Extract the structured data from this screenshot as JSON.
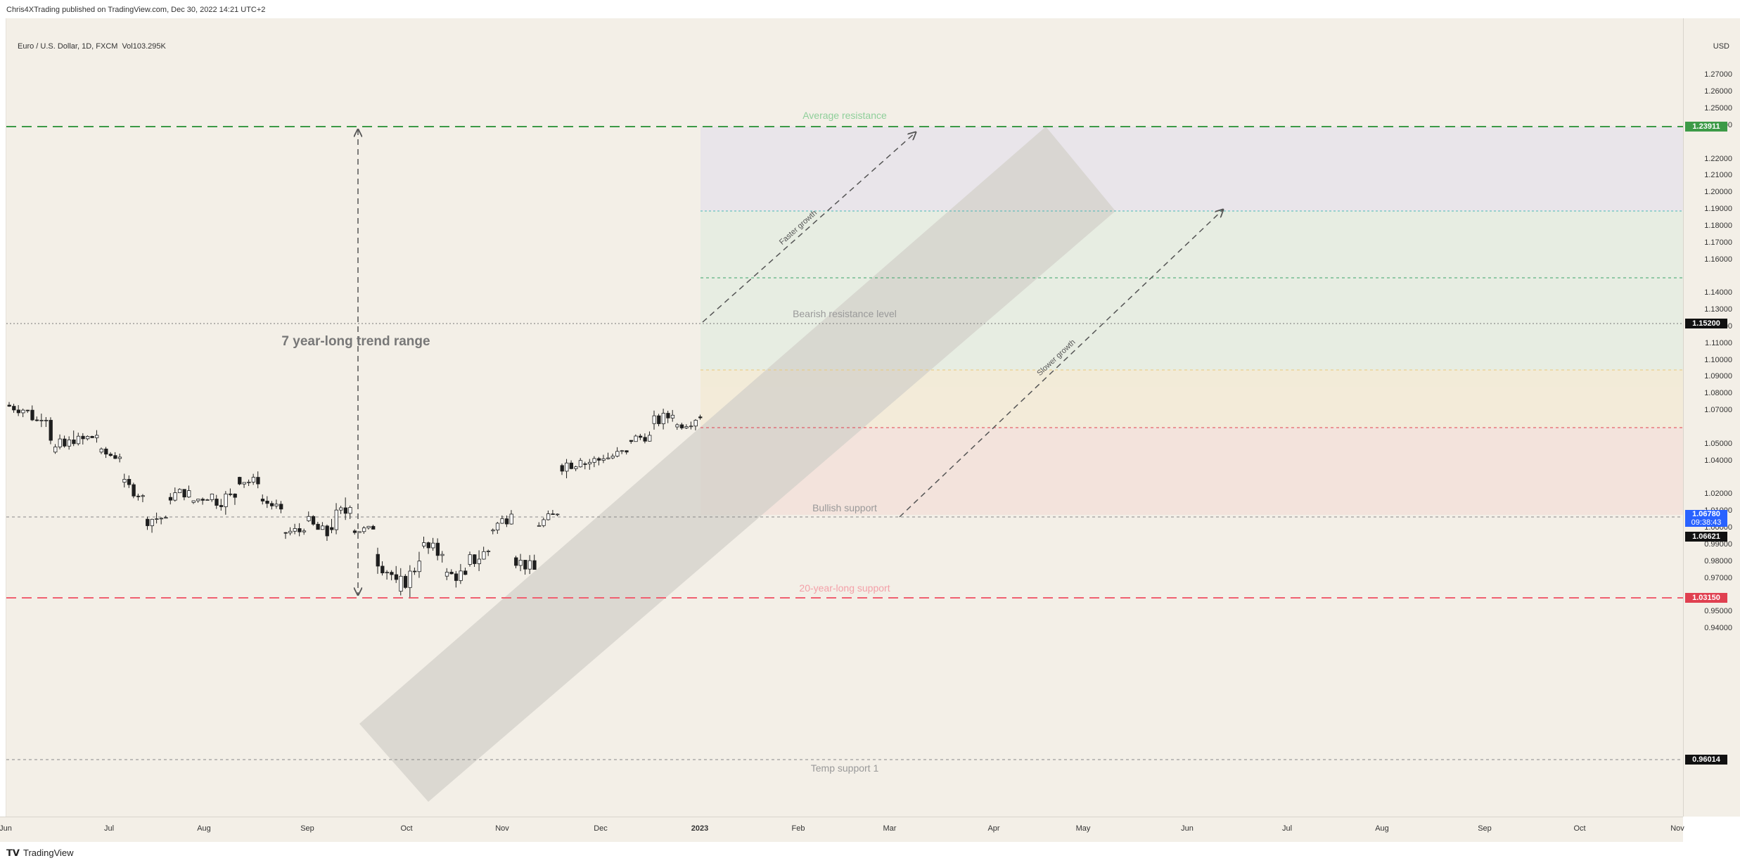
{
  "header": {
    "published_text": "Chris4XTrading published on TradingView.com, Dec 30, 2022 14:21 UTC+2"
  },
  "symbol": {
    "name": "Euro / U.S. Dollar, 1D, FXCM",
    "volume_label": "Vol",
    "volume_value": "103.295K"
  },
  "price_axis": {
    "currency": "USD",
    "ticks": [
      "1.27000",
      "1.26000",
      "1.25000",
      "1.24000",
      "1.22000",
      "1.21000",
      "1.20000",
      "1.19000",
      "1.18000",
      "1.17000",
      "1.16000",
      "1.14000",
      "1.13000",
      "1.12000",
      "1.11000",
      "1.10000",
      "1.09000",
      "1.08000",
      "1.07000",
      "1.05000",
      "1.04000",
      "1.02000",
      "1.01000",
      "1.00000",
      "0.99000",
      "0.98000",
      "0.97000",
      "0.95000",
      "0.94000"
    ],
    "badges": {
      "avg_resistance": "1.23911",
      "bearish": "1.15200",
      "last_price": "1.06780",
      "countdown": "09:38:43",
      "bullish": "1.06621",
      "support20": "1.03150",
      "temp_support": "0.96014"
    }
  },
  "time_axis": {
    "labels": [
      "Jun",
      "Jul",
      "Aug",
      "Sep",
      "Oct",
      "Nov",
      "Dec",
      "2023",
      "Feb",
      "Mar",
      "Apr",
      "May",
      "Jun",
      "Jul",
      "Aug",
      "Sep",
      "Oct",
      "Nov"
    ]
  },
  "drawings": {
    "average_resistance": "Average resistance",
    "bearish_resistance": "Bearish resistance level",
    "bullish_support": "Bullish support",
    "twenty_year_support": "20-year-long support",
    "temp_support": "Temp support 1",
    "trend_range": "7 year-long trend range",
    "faster_growth": "Faster growth",
    "slower_growth": "Slower growth"
  },
  "colors": {
    "background": "#f3efe7",
    "avg_resistance": "#3c9a47",
    "support20": "#f06070",
    "bullish_candle": "#ffffff",
    "bearish_candle": "#1e1e1e",
    "last_price_badge": "#2962ff"
  },
  "chart_data": {
    "type": "candlestick",
    "symbol": "EUR/USD",
    "timeframe": "1D",
    "ohlc_approx": [
      [
        "2022-06-01",
        1.073,
        1.076,
        1.065,
        1.07
      ],
      [
        "2022-06-08",
        1.07,
        1.078,
        1.064,
        1.052
      ],
      [
        "2022-06-15",
        1.045,
        1.056,
        1.036,
        1.05
      ],
      [
        "2022-06-22",
        1.05,
        1.061,
        1.046,
        1.055
      ],
      [
        "2022-06-29",
        1.045,
        1.047,
        1.038,
        1.042
      ],
      [
        "2022-07-06",
        1.027,
        1.03,
        1.018,
        1.019
      ],
      [
        "2022-07-13",
        1.005,
        1.012,
        0.998,
        1.006
      ],
      [
        "2022-07-20",
        1.018,
        1.027,
        1.015,
        1.022
      ],
      [
        "2022-07-27",
        1.015,
        1.022,
        1.011,
        1.02
      ],
      [
        "2022-08-03",
        1.017,
        1.029,
        1.012,
        1.018
      ],
      [
        "2022-08-10",
        1.03,
        1.033,
        1.02,
        1.026
      ],
      [
        "2022-08-17",
        1.017,
        1.02,
        1.01,
        1.011
      ],
      [
        "2022-08-24",
        0.997,
        1.002,
        0.99,
        0.998
      ],
      [
        "2022-08-31",
        1.004,
        1.008,
        0.993,
        0.995
      ],
      [
        "2022-09-07",
        1.0,
        1.018,
        0.995,
        1.012
      ],
      [
        "2022-09-14",
        0.998,
        1.003,
        0.995,
        0.999
      ],
      [
        "2022-09-21",
        0.984,
        0.988,
        0.97,
        0.969
      ],
      [
        "2022-09-28",
        0.962,
        0.974,
        0.954,
        0.98
      ],
      [
        "2022-10-05",
        0.989,
        0.999,
        0.982,
        0.984
      ],
      [
        "2022-10-12",
        0.971,
        0.978,
        0.963,
        0.972
      ],
      [
        "2022-10-19",
        0.978,
        0.988,
        0.97,
        0.986
      ],
      [
        "2022-10-26",
        0.998,
        1.009,
        0.996,
        1.008
      ],
      [
        "2022-11-02",
        0.982,
        0.986,
        0.973,
        0.975
      ],
      [
        "2022-11-09",
        1.001,
        1.01,
        0.999,
        1.008
      ],
      [
        "2022-11-16",
        1.037,
        1.048,
        1.033,
        1.04
      ],
      [
        "2022-11-23",
        1.038,
        1.044,
        1.031,
        1.041
      ],
      [
        "2022-11-30",
        1.041,
        1.048,
        1.036,
        1.045
      ],
      [
        "2022-12-07",
        1.052,
        1.058,
        1.048,
        1.055
      ],
      [
        "2022-12-14",
        1.062,
        1.073,
        1.06,
        1.067
      ],
      [
        "2022-12-21",
        1.06,
        1.067,
        1.058,
        1.064
      ],
      [
        "2022-12-30",
        1.066,
        1.07,
        1.064,
        1.0678
      ]
    ],
    "ylim": [
      0.935,
      1.28
    ],
    "levels": [
      {
        "name": "Average resistance",
        "value": 1.23911
      },
      {
        "name": "Bearish resistance level",
        "value": 1.152
      },
      {
        "name": "Bullish support",
        "value": 1.06621
      },
      {
        "name": "20-year-long support",
        "value": 1.0315
      },
      {
        "name": "Temp support 1",
        "value": 0.96014
      }
    ],
    "last_price": 1.0678
  }
}
